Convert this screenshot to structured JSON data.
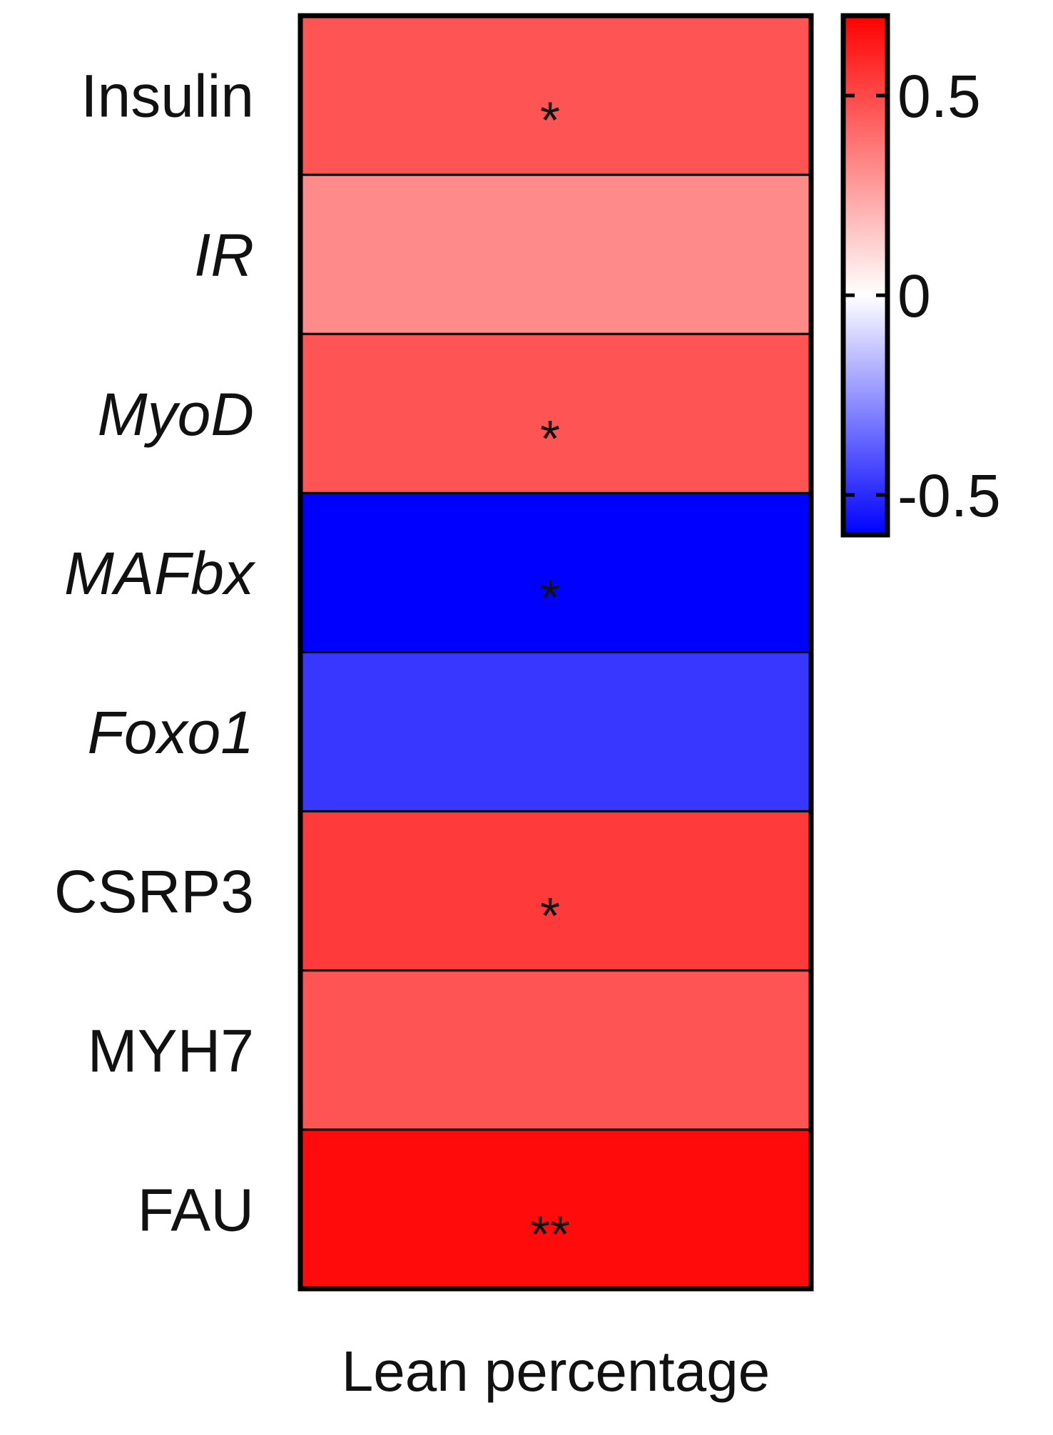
{
  "chart_data": {
    "type": "heatmap",
    "xlabel": "Lean percentage",
    "rows": [
      {
        "label": "Insulin",
        "italic": false,
        "value": 0.47,
        "significance": "*"
      },
      {
        "label": "IR",
        "italic": true,
        "value": 0.32,
        "significance": ""
      },
      {
        "label": "MyoD",
        "italic": true,
        "value": 0.47,
        "significance": "*"
      },
      {
        "label": "MAFbx",
        "italic": true,
        "value": -0.63,
        "significance": "*"
      },
      {
        "label": "Foxo1",
        "italic": true,
        "value": -0.47,
        "significance": ""
      },
      {
        "label": "CSRP3",
        "italic": false,
        "value": 0.54,
        "significance": "*"
      },
      {
        "label": "MYH7",
        "italic": false,
        "value": 0.47,
        "significance": ""
      },
      {
        "label": "FAU",
        "italic": false,
        "value": 0.67,
        "significance": "**"
      }
    ],
    "colorbar": {
      "range": [
        -0.6,
        0.7
      ],
      "ticks": [
        0.5,
        0,
        -0.5
      ],
      "tick_labels": [
        "0.5",
        "0",
        "-0.5"
      ],
      "low_color": "#0000ff",
      "mid_color": "#ffffff",
      "high_color": "#ff0000"
    }
  }
}
